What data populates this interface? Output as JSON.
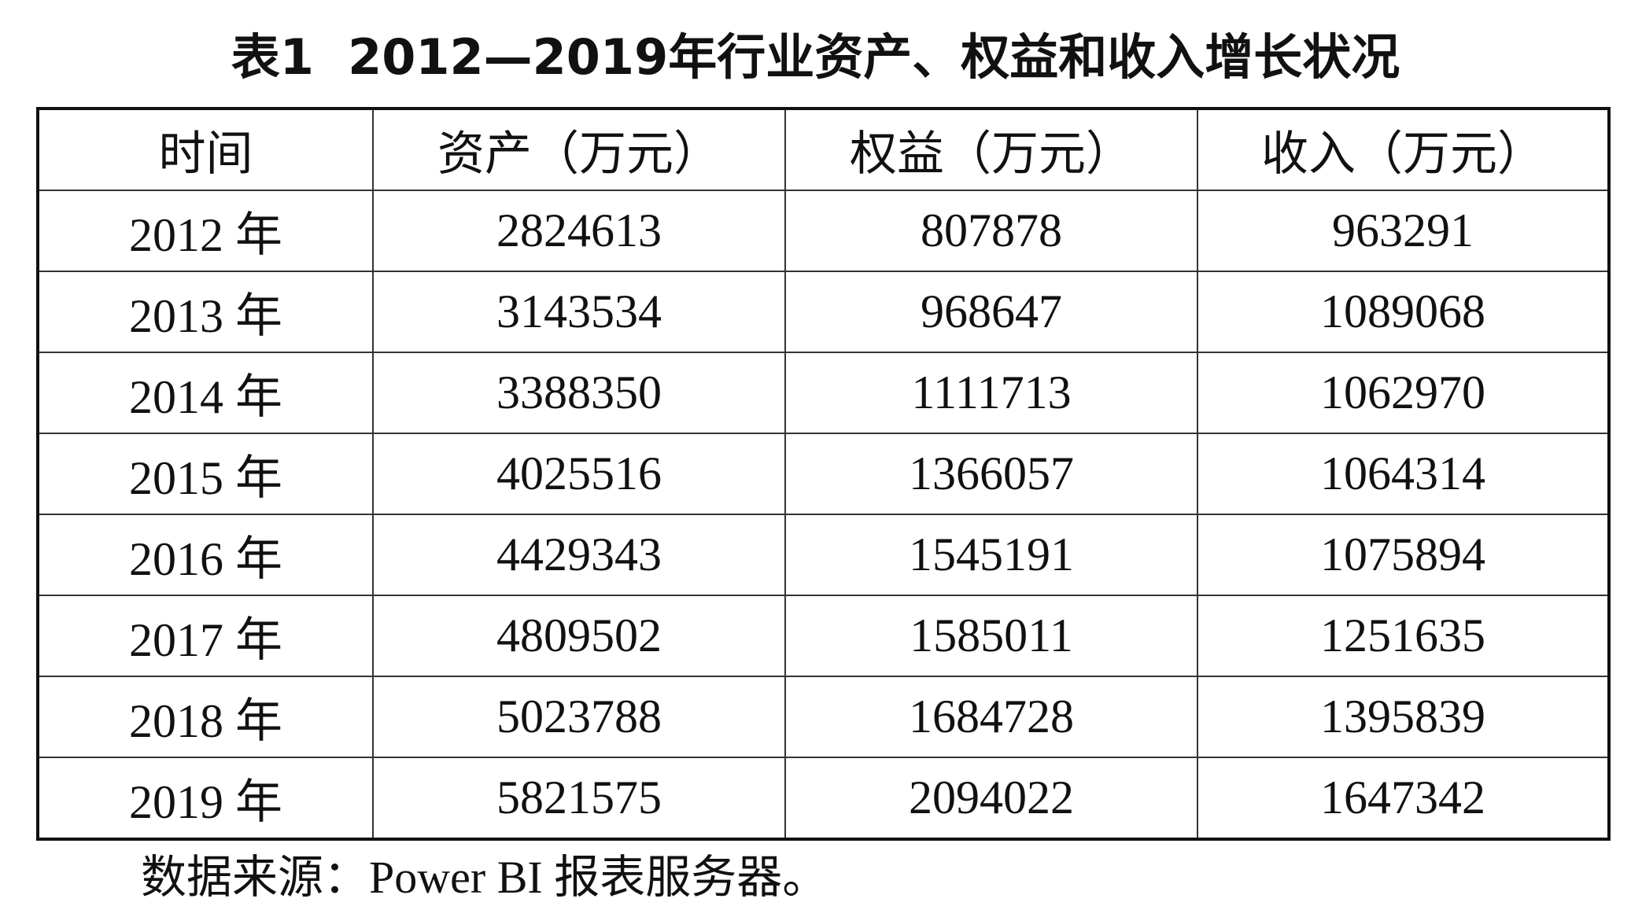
{
  "header": {
    "title": "表1  2012—2019年行业资产、权益和收入增长状况"
  },
  "table": {
    "columns": [
      "时间",
      "资产（万元）",
      "权益（万元）",
      "收入（万元）"
    ],
    "rows": [
      [
        "2012 年",
        2824613,
        807878,
        963291
      ],
      [
        "2013 年",
        3143534,
        968647,
        1089068
      ],
      [
        "2014 年",
        3388350,
        1111713,
        1062970
      ],
      [
        "2015 年",
        4025516,
        1366057,
        1064314
      ],
      [
        "2016 年",
        4429343,
        1545191,
        1075894
      ],
      [
        "2017 年",
        4809502,
        1585011,
        1251635
      ],
      [
        "2018 年",
        5023788,
        1684728,
        1395839
      ],
      [
        "2019 年",
        5821575,
        2094022,
        1647342
      ]
    ]
  },
  "footer": {
    "note": "数据来源：Power BI 报表服务器。"
  }
}
